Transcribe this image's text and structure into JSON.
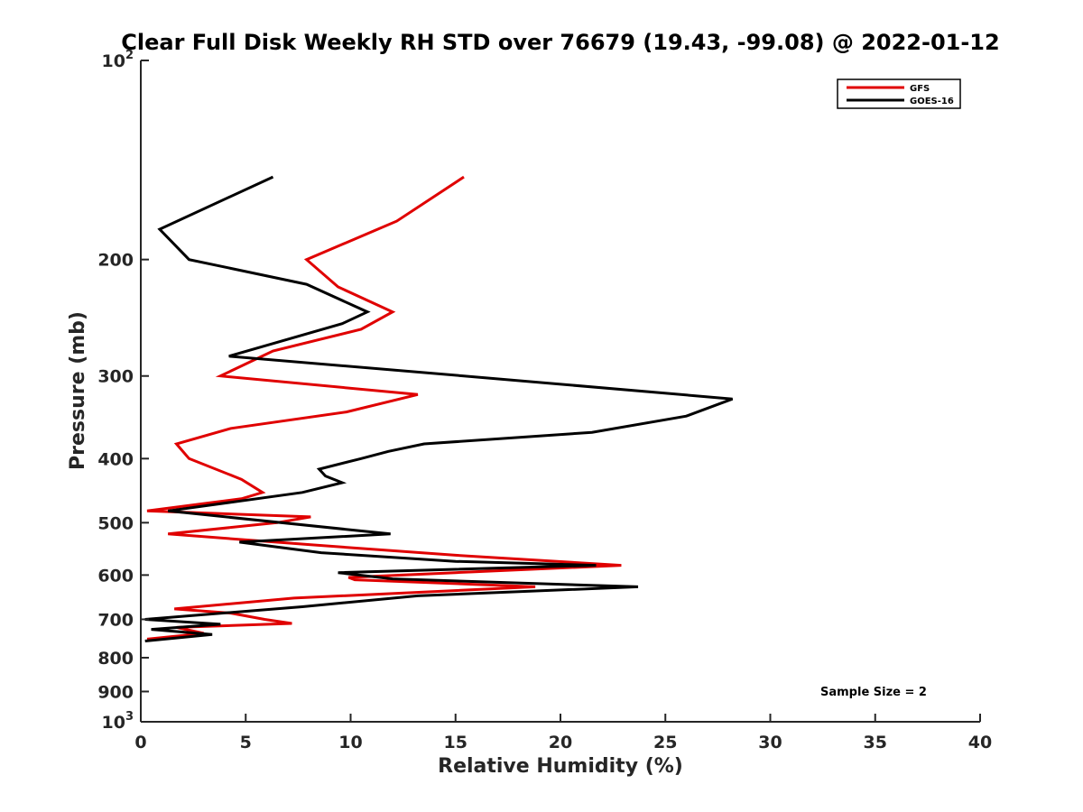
{
  "chart_data": {
    "type": "line",
    "title": "Clear Full Disk Weekly RH STD over 76679 (19.43, -99.08) @ 2022-01-12",
    "xlabel": "Relative Humidity (%)",
    "ylabel": "Pressure (mb)",
    "xlim": [
      0,
      40
    ],
    "ylim": [
      100,
      1000
    ],
    "yscale": "log",
    "y_reversed": true,
    "grid": false,
    "legend_position": "top-right",
    "x_ticks": [
      0,
      5,
      10,
      15,
      20,
      25,
      30,
      35,
      40
    ],
    "x_tick_labels": [
      "0",
      "5",
      "10",
      "15",
      "20",
      "25",
      "30",
      "35",
      "40"
    ],
    "y_ticks": [
      100,
      200,
      300,
      400,
      500,
      600,
      700,
      800,
      900,
      1000
    ],
    "y_tick_labels": [
      "10^2",
      "200",
      "300",
      "400",
      "500",
      "600",
      "700",
      "800",
      "900",
      "10^3"
    ],
    "annotation": "Sample Size = 2",
    "series": [
      {
        "name": "GFS",
        "color": "#e00000",
        "points": [
          [
            15.4,
            150
          ],
          [
            12.2,
            175
          ],
          [
            7.9,
            200
          ],
          [
            9.4,
            220
          ],
          [
            12.0,
            240
          ],
          [
            10.5,
            255
          ],
          [
            6.3,
            275
          ],
          [
            3.8,
            300
          ],
          [
            13.2,
            320
          ],
          [
            9.8,
            340
          ],
          [
            4.3,
            360
          ],
          [
            1.7,
            380
          ],
          [
            2.3,
            400
          ],
          [
            4.8,
            430
          ],
          [
            5.8,
            450
          ],
          [
            4.8,
            460
          ],
          [
            0.3,
            480
          ],
          [
            8.1,
            490
          ],
          [
            6.5,
            500
          ],
          [
            1.3,
            520
          ],
          [
            8.1,
            540
          ],
          [
            15.0,
            560
          ],
          [
            22.9,
            580
          ],
          [
            15.0,
            595
          ],
          [
            9.9,
            605
          ],
          [
            10.2,
            610
          ],
          [
            13.2,
            615
          ],
          [
            18.8,
            625
          ],
          [
            7.3,
            650
          ],
          [
            1.6,
            675
          ],
          [
            4.3,
            685
          ],
          [
            5.9,
            700
          ],
          [
            7.2,
            710
          ],
          [
            1.7,
            720
          ],
          [
            3.0,
            735
          ],
          [
            0.3,
            750
          ]
        ]
      },
      {
        "name": "GOES-16",
        "color": "#000000",
        "points": [
          [
            6.3,
            150
          ],
          [
            0.9,
            180
          ],
          [
            2.3,
            200
          ],
          [
            7.9,
            218
          ],
          [
            10.8,
            240
          ],
          [
            9.6,
            250
          ],
          [
            4.2,
            280
          ],
          [
            15.4,
            300
          ],
          [
            28.2,
            325
          ],
          [
            26.0,
            345
          ],
          [
            21.5,
            365
          ],
          [
            13.5,
            380
          ],
          [
            11.8,
            390
          ],
          [
            10.5,
            400
          ],
          [
            8.5,
            415
          ],
          [
            8.8,
            425
          ],
          [
            9.6,
            435
          ],
          [
            7.7,
            450
          ],
          [
            1.3,
            480
          ],
          [
            11.9,
            520
          ],
          [
            4.7,
            535
          ],
          [
            8.6,
            555
          ],
          [
            15.0,
            572
          ],
          [
            21.7,
            580
          ],
          [
            9.4,
            595
          ],
          [
            12.0,
            608
          ],
          [
            23.7,
            625
          ],
          [
            13.2,
            645
          ],
          [
            7.7,
            670
          ],
          [
            0.2,
            700
          ],
          [
            3.8,
            712
          ],
          [
            0.5,
            725
          ],
          [
            3.4,
            738
          ],
          [
            0.2,
            755
          ]
        ]
      }
    ]
  }
}
